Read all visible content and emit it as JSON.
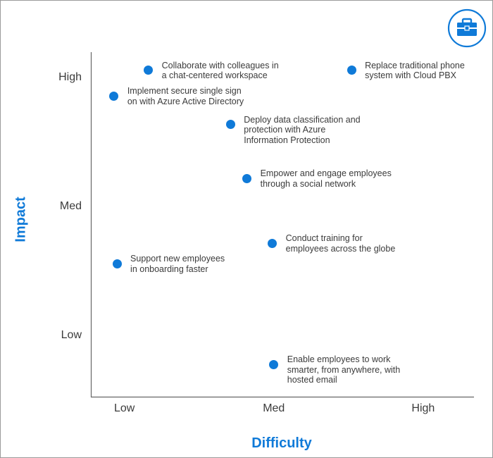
{
  "chart_data": {
    "type": "scatter",
    "xlabel": "Difficulty",
    "ylabel": "Impact",
    "x_ticks": [
      "Low",
      "Med",
      "High"
    ],
    "y_ticks": [
      "High",
      "Med",
      "Low"
    ],
    "x_scale": {
      "Low": 1,
      "Med": 2,
      "High": 3
    },
    "y_scale": {
      "Low": 1,
      "Med": 2,
      "High": 3
    },
    "xlim": [
      0.78,
      3.34
    ],
    "ylim": [
      0.53,
      3.2
    ],
    "grid": false,
    "points": [
      {
        "label": "Collaborate with colleagues in\na chat-centered workspace",
        "x": 1.16,
        "y": 3.06
      },
      {
        "label": "Replace traditional phone\nsystem with Cloud PBX",
        "x": 2.52,
        "y": 3.06
      },
      {
        "label": "Implement secure single sign\non with Azure Active Directory",
        "x": 0.93,
        "y": 2.86
      },
      {
        "label": "Deploy data classification and\nprotection with Azure\nInformation Protection",
        "x": 1.71,
        "y": 2.64
      },
      {
        "label": "Empower and engage employees\nthrough a social network",
        "x": 1.82,
        "y": 2.22
      },
      {
        "label": "Conduct training for\nemployees across the globe",
        "x": 1.99,
        "y": 1.72
      },
      {
        "label": "Support new employees\nin onboarding faster",
        "x": 0.95,
        "y": 1.56
      },
      {
        "label": "Enable employees to work\nsmarter, from anywhere, with\nhosted email",
        "x": 2.0,
        "y": 0.78
      }
    ],
    "point_color": "#0f7ad8"
  },
  "icon": "briefcase-icon",
  "accent_color": "#0f7ad8"
}
